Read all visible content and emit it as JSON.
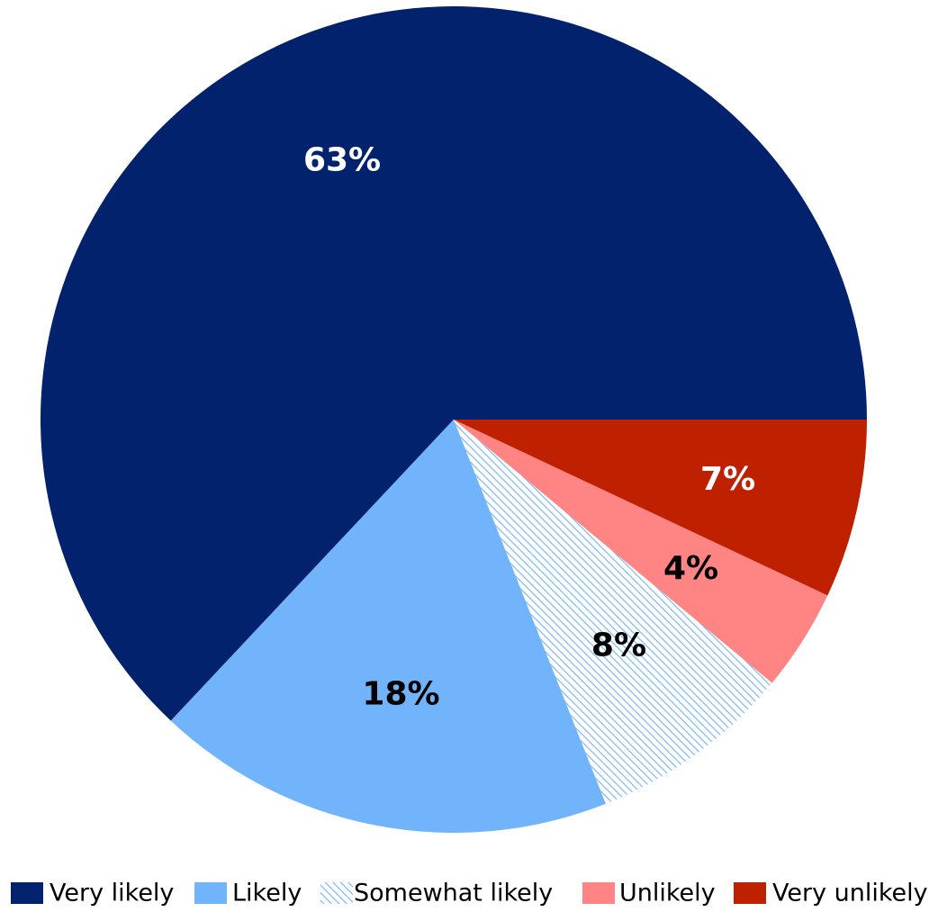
{
  "chart_data": {
    "type": "pie",
    "categories": [
      "Very likely",
      "Likely",
      "Somewhat likely",
      "Unlikely",
      "Very unlikely"
    ],
    "values": [
      63,
      18,
      8,
      4,
      7
    ],
    "value_labels": [
      "63%",
      "18%",
      "8%",
      "4%",
      "7%"
    ],
    "colors": [
      "#02226e",
      "#72b4fb",
      "#72b4fb",
      "#fe8584",
      "#bf2100"
    ],
    "hatch": [
      false,
      false,
      true,
      false,
      false
    ],
    "label_colors": [
      "#ffffff",
      "#000000",
      "#000000",
      "#000000",
      "#ffffff"
    ],
    "legend": "bottom"
  }
}
